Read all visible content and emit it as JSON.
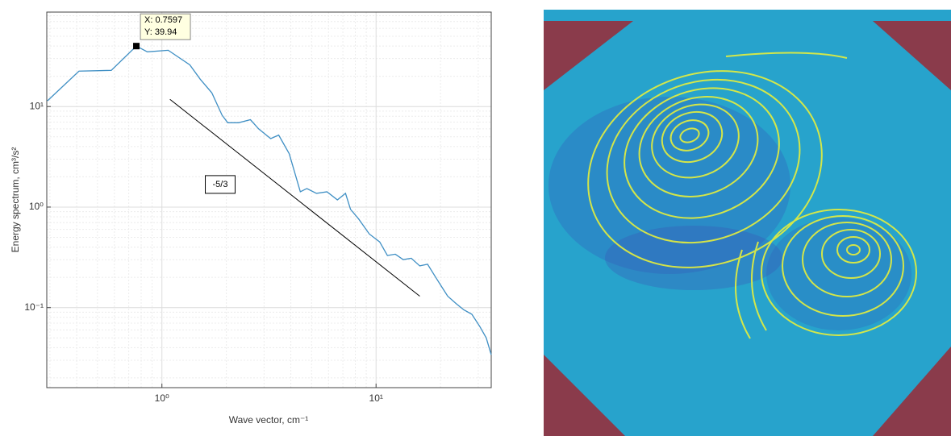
{
  "chart_data": {
    "type": "line",
    "xlabel": "Wave vector, cm⁻¹",
    "ylabel": "Energy spectrum, cm³/s²",
    "xscale": "log",
    "yscale": "log",
    "xlim": [
      0.29,
      34.5
    ],
    "ylim": [
      0.016,
      87
    ],
    "xticks": [
      {
        "value": 1,
        "label": "10⁰"
      },
      {
        "value": 10,
        "label": "10¹"
      }
    ],
    "yticks": [
      {
        "value": 0.1,
        "label": "10⁻¹"
      },
      {
        "value": 1,
        "label": "10⁰"
      },
      {
        "value": 10,
        "label": "10¹"
      }
    ],
    "grid": true,
    "minor_grid": true,
    "series": [
      {
        "color": "#3f8fc4",
        "x": [
          0.292,
          0.41,
          0.58,
          0.7597,
          0.855,
          1.07,
          1.35,
          1.51,
          1.71,
          1.91,
          2.03,
          2.28,
          2.59,
          2.83,
          3.22,
          3.51,
          3.93,
          4.43,
          4.75,
          5.27,
          5.9,
          6.6,
          7.2,
          7.6,
          8.3,
          9.3,
          10.4,
          11.3,
          12.3,
          13.4,
          14.6,
          16.0,
          17.4,
          19.0,
          20.3,
          21.6,
          23.6,
          25.7,
          28.0,
          30.5,
          32.7,
          34.5
        ],
        "values": [
          11.4,
          22.5,
          22.9,
          39.94,
          35,
          36.3,
          26,
          18.7,
          13.7,
          8.2,
          6.9,
          6.9,
          7.4,
          6.0,
          4.8,
          5.2,
          3.4,
          1.42,
          1.53,
          1.37,
          1.42,
          1.18,
          1.37,
          0.95,
          0.76,
          0.54,
          0.45,
          0.33,
          0.34,
          0.3,
          0.31,
          0.26,
          0.27,
          0.2,
          0.16,
          0.13,
          0.11,
          0.095,
          0.086,
          0.065,
          0.05,
          0.034
        ]
      }
    ],
    "reference_line": {
      "x": [
        1.09,
        16
      ],
      "values": [
        11.8,
        0.13
      ],
      "color": "#000000",
      "label": "-5/3"
    },
    "datatip": {
      "x": 0.7597,
      "y": 39.94,
      "x_label": "X: 0.7597",
      "y_label": "Y: 39.94"
    }
  }
}
